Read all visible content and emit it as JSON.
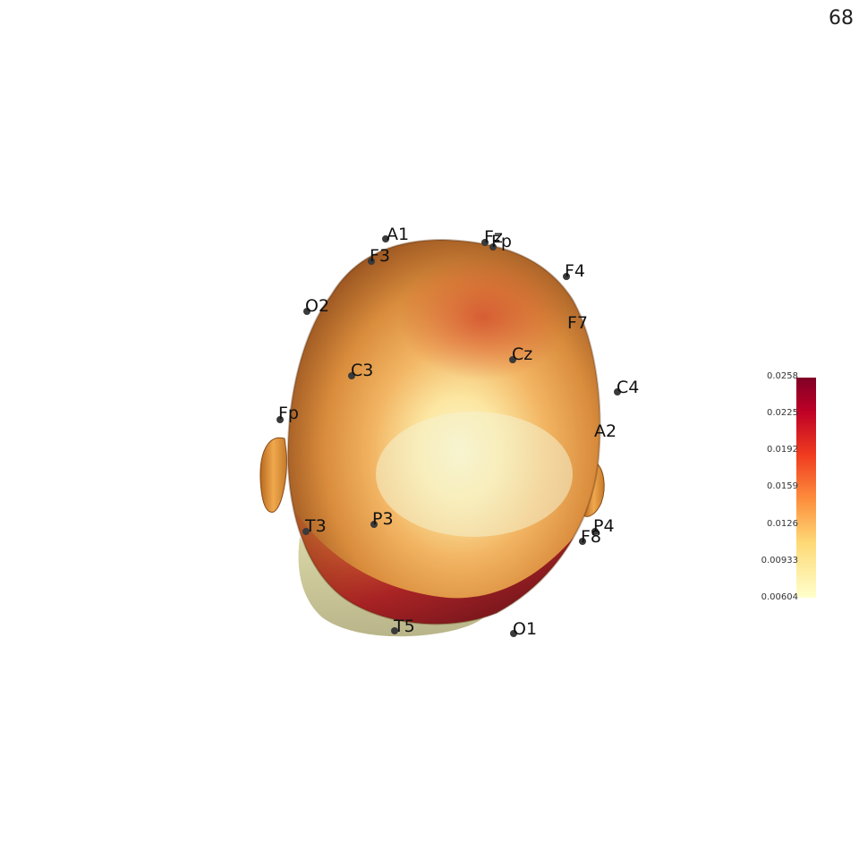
{
  "frame_counter": "68",
  "electrodes": [
    {
      "label": "A1"
    },
    {
      "label": "Fz"
    },
    {
      "label": "Fp"
    },
    {
      "label": "F3"
    },
    {
      "label": "F4"
    },
    {
      "label": "O2"
    },
    {
      "label": "F7"
    },
    {
      "label": "Cz"
    },
    {
      "label": "C3"
    },
    {
      "label": "C4"
    },
    {
      "label": "Fp"
    },
    {
      "label": "A2"
    },
    {
      "label": "T3"
    },
    {
      "label": "P3"
    },
    {
      "label": "P4"
    },
    {
      "label": "F8"
    },
    {
      "label": "T5"
    },
    {
      "label": "O1"
    }
  ],
  "colorbar": {
    "colormap": "YlOrRd",
    "ticks": [
      "0.0258",
      "0.0225",
      "0.0192",
      "0.0159",
      "0.0126",
      "0.00933",
      "0.00604"
    ],
    "colors": {
      "low": "#ffffcc",
      "mid": "#fd8d3c",
      "high": "#800026"
    }
  }
}
